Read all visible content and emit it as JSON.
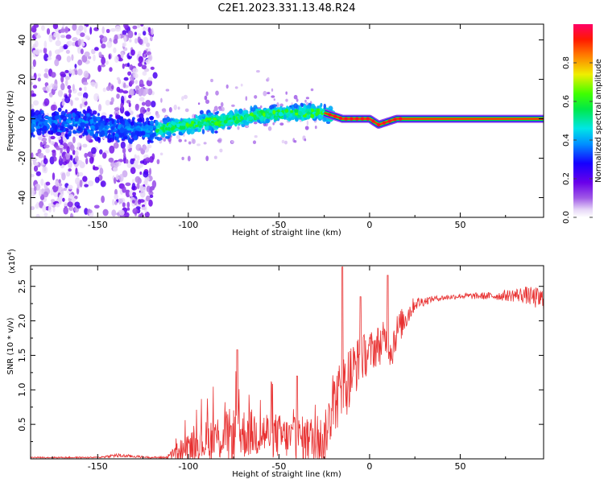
{
  "title": "C2E1.2023.331.13.48.R24",
  "chart_data": [
    {
      "type": "heatmap",
      "xlabel": "Height of straight line (km)",
      "ylabel": "Frequency (Hz)",
      "xlim": [
        -187,
        96
      ],
      "ylim": [
        -50,
        48
      ],
      "xticks": [
        -150,
        -100,
        -50,
        0,
        50
      ],
      "yticks": [
        -40,
        -20,
        0,
        20,
        40
      ],
      "colorbar": {
        "label": "Normalized spectral amplitude",
        "range": [
          0.0,
          1.0
        ],
        "ticks": [
          0.0,
          0.2,
          0.4,
          0.6,
          0.8
        ],
        "tick_labels": [
          "0.0",
          "0.2",
          "0.4",
          "0.6",
          "0.8"
        ],
        "colormap": "rainbow (white-purple-blue-cyan-green-yellow-red-magenta)"
      },
      "ridge": {
        "description": "peak spectral amplitude frequency vs height",
        "x": [
          -160,
          -145,
          -120,
          -100,
          -80,
          -60,
          -40,
          -25,
          -15,
          0,
          5,
          15,
          50,
          90
        ],
        "y": [
          -2,
          -5,
          -6,
          -3,
          -1,
          2,
          3,
          3,
          0,
          0,
          -3,
          0,
          0,
          0
        ]
      }
    },
    {
      "type": "line",
      "xlabel": "Height of straight line (km)",
      "ylabel": "SNR (10 * v/v)",
      "yscale_label": "(x10",
      "yscale_exp": "4",
      "yscale_close": ")",
      "xlim": [
        -187,
        96
      ],
      "ylim": [
        0,
        2.8
      ],
      "xticks": [
        -150,
        -100,
        -50,
        0,
        50
      ],
      "yticks": [
        0.5,
        1.0,
        1.5,
        2.0,
        2.5
      ],
      "ytick_labels": [
        "0.5",
        "1.0",
        "1.5",
        "2.0",
        "2.5"
      ],
      "color": "#e83232",
      "series": [
        {
          "envelope_x": [
            -187,
            -150,
            -140,
            -120,
            -112,
            -105,
            -95,
            -85,
            -75,
            -65,
            -55,
            -45,
            -35,
            -25,
            -20,
            -15,
            -13,
            -10,
            -5,
            0,
            5,
            8,
            10,
            12,
            15,
            20,
            25,
            35,
            50,
            70,
            85,
            96
          ],
          "base": [
            0.02,
            0.02,
            0.05,
            0.02,
            0.02,
            0.12,
            0.22,
            0.3,
            0.35,
            0.38,
            0.36,
            0.3,
            0.28,
            0.28,
            0.8,
            1.0,
            1.1,
            1.25,
            1.45,
            1.55,
            1.65,
            1.7,
            1.75,
            1.6,
            1.85,
            2.05,
            2.25,
            2.32,
            2.36,
            2.36,
            2.38,
            2.3
          ],
          "amplitude": [
            0.01,
            0.01,
            0.03,
            0.01,
            0.02,
            0.15,
            0.25,
            0.35,
            0.4,
            0.35,
            0.35,
            0.3,
            0.35,
            0.35,
            0.45,
            0.5,
            0.5,
            0.45,
            0.35,
            0.3,
            0.3,
            0.3,
            0.3,
            0.35,
            0.25,
            0.2,
            0.1,
            0.04,
            0.04,
            0.06,
            0.12,
            0.18
          ],
          "spikes": [
            {
              "x": -15,
              "y": 2.78
            },
            {
              "x": 10,
              "y": 2.66
            },
            {
              "x": -73,
              "y": 1.58
            },
            {
              "x": -40,
              "y": 1.2
            },
            {
              "x": -5,
              "y": 2.35
            }
          ]
        }
      ]
    }
  ]
}
